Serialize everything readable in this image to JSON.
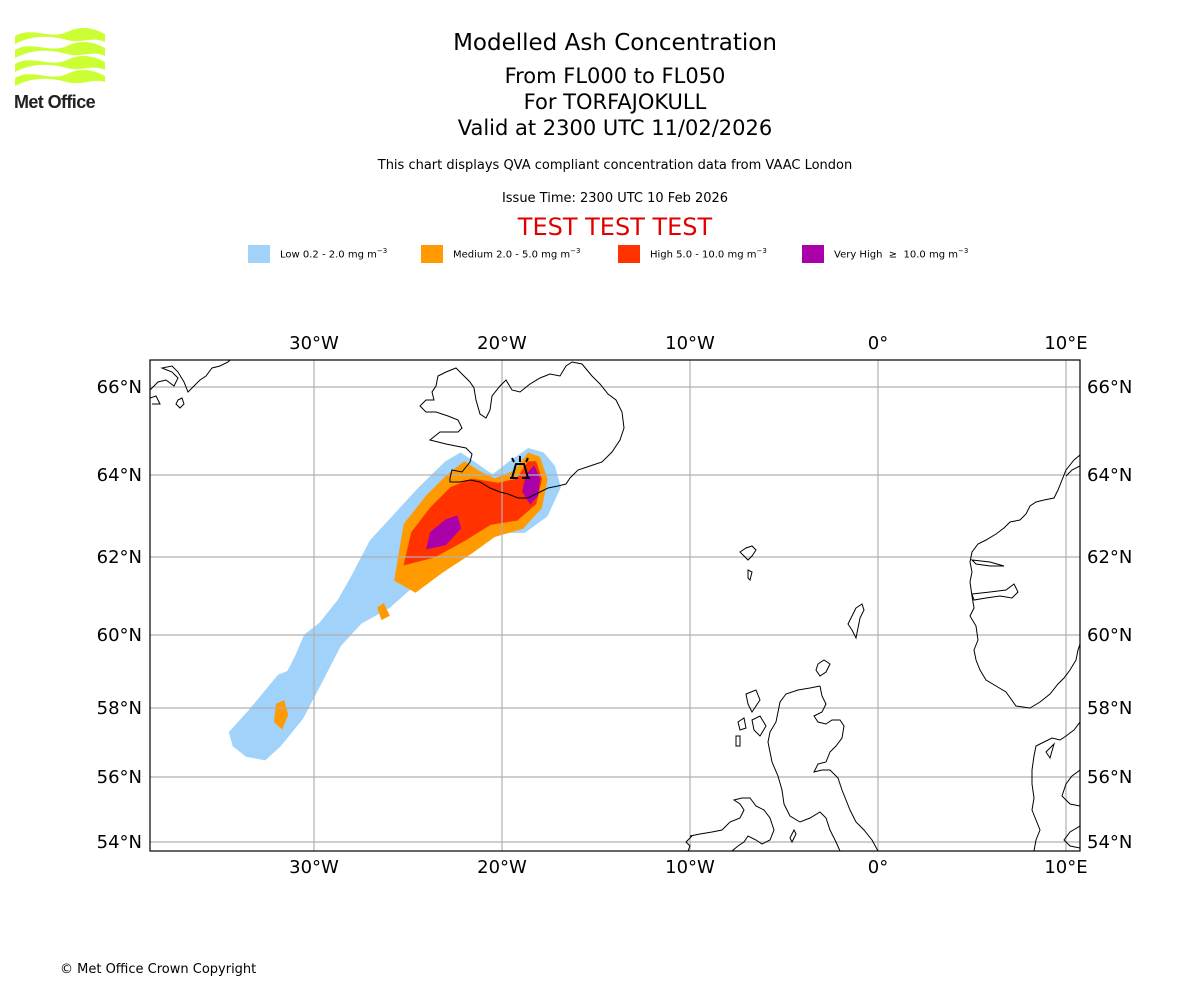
{
  "logo": {
    "text": "Met Office",
    "icon": "met-office-waves-logo",
    "color": "#ccff33"
  },
  "header": {
    "title": "Modelled Ash Concentration",
    "flight_levels": "From FL000 to FL050",
    "volcano": "For TORFAJOKULL",
    "valid_time": "Valid at 2300 UTC 11/02/2026",
    "description": "This chart displays QVA compliant concentration data from VAAC London",
    "issue_time": "Issue Time: 2300 UTC 10 Feb 2026",
    "test_banner": "TEST TEST TEST",
    "test_banner_color": "#e00000"
  },
  "legend": [
    {
      "label": "Low 0.2 - 2.0 mg m",
      "sup": "−3",
      "color": "#a0d2fa"
    },
    {
      "label": "Medium 2.0 - 5.0 mg m",
      "sup": "−3",
      "color": "#ff9a00"
    },
    {
      "label": "High 5.0 - 10.0 mg m",
      "sup": "−3",
      "color": "#ff3200"
    },
    {
      "label": "Very High  ≥  10.0 mg m",
      "sup": "−3",
      "color": "#aa00aa"
    }
  ],
  "footer": {
    "copyright": "© Met Office Crown Copyright"
  },
  "chart_data": {
    "type": "heatmap",
    "title": "Modelled Ash Concentration",
    "subtitle": "From FL000 to FL050, For TORFAJOKULL, Valid at 2300 UTC 11/02/2026",
    "projection": "Plate Carree",
    "extent": {
      "lon": [
        -38.7,
        10.8
      ],
      "lat": [
        53.8,
        66.6
      ]
    },
    "grid": true,
    "x_ticks": [
      {
        "lon": -30,
        "label": "30°W"
      },
      {
        "lon": -20,
        "label": "20°W"
      },
      {
        "lon": -10,
        "label": "10°W"
      },
      {
        "lon": 0,
        "label": "0°"
      },
      {
        "lon": 10,
        "label": "10°E"
      }
    ],
    "y_ticks": [
      {
        "lat": 66,
        "label": "66°N"
      },
      {
        "lat": 64,
        "label": "64°N"
      },
      {
        "lat": 62,
        "label": "62°N"
      },
      {
        "lat": 60,
        "label": "60°N"
      },
      {
        "lat": 58,
        "label": "58°N"
      },
      {
        "lat": 56,
        "label": "56°N"
      },
      {
        "lat": 54,
        "label": "54°N"
      }
    ],
    "volcano_marker": {
      "name": "TORFAJOKULL",
      "lon": -19.1,
      "lat": 63.9
    },
    "ash_levels": [
      {
        "level": "Low",
        "range": "0.2 - 2.0 mg m-3",
        "color": "#a0d2fa",
        "polygons": [
          [
            [
              -34.5,
              57.3
            ],
            [
              -34.3,
              56.9
            ],
            [
              -33.6,
              56.6
            ],
            [
              -32.6,
              56.5
            ],
            [
              -31.8,
              56.9
            ],
            [
              -30.6,
              57.7
            ],
            [
              -29.6,
              58.7
            ],
            [
              -28.6,
              59.7
            ],
            [
              -27.5,
              60.3
            ],
            [
              -26.0,
              60.7
            ],
            [
              -24.6,
              61.3
            ],
            [
              -23.2,
              61.8
            ],
            [
              -21.6,
              62.3
            ],
            [
              -20.3,
              62.6
            ],
            [
              -18.8,
              62.6
            ],
            [
              -17.6,
              63.0
            ],
            [
              -16.9,
              63.7
            ],
            [
              -17.2,
              64.2
            ],
            [
              -17.8,
              64.5
            ],
            [
              -18.6,
              64.6
            ],
            [
              -19.6,
              64.3
            ],
            [
              -20.5,
              64.0
            ],
            [
              -21.5,
              64.3
            ],
            [
              -22.2,
              64.5
            ],
            [
              -23.0,
              64.3
            ],
            [
              -24.4,
              63.7
            ],
            [
              -25.8,
              63.0
            ],
            [
              -27.0,
              62.4
            ],
            [
              -28.0,
              61.5
            ],
            [
              -28.7,
              60.9
            ],
            [
              -29.7,
              60.3
            ],
            [
              -30.5,
              60.0
            ],
            [
              -31.0,
              59.4
            ],
            [
              -31.4,
              59.0
            ],
            [
              -31.9,
              58.9
            ],
            [
              -32.7,
              58.4
            ],
            [
              -33.5,
              57.9
            ]
          ]
        ]
      },
      {
        "level": "Medium",
        "range": "2.0 - 5.0 mg m-3",
        "color": "#ff9a00",
        "polygons": [
          [
            [
              -25.7,
              61.4
            ],
            [
              -24.6,
              61.1
            ],
            [
              -23.2,
              61.6
            ],
            [
              -21.6,
              62.1
            ],
            [
              -20.4,
              62.5
            ],
            [
              -18.9,
              62.7
            ],
            [
              -17.9,
              63.2
            ],
            [
              -17.6,
              63.9
            ],
            [
              -18.0,
              64.4
            ],
            [
              -18.6,
              64.5
            ],
            [
              -19.3,
              64.1
            ],
            [
              -20.4,
              63.9
            ],
            [
              -21.3,
              64.1
            ],
            [
              -22.0,
              64.3
            ],
            [
              -22.9,
              64.0
            ],
            [
              -24.0,
              63.5
            ],
            [
              -25.2,
              62.8
            ],
            [
              -25.5,
              62.0
            ]
          ],
          [
            [
              -31.6,
              58.2
            ],
            [
              -31.4,
              57.8
            ],
            [
              -31.7,
              57.4
            ],
            [
              -32.1,
              57.6
            ],
            [
              -32.0,
              58.1
            ]
          ],
          [
            [
              -26.6,
              60.7
            ],
            [
              -26.3,
              60.8
            ],
            [
              -26.0,
              60.5
            ],
            [
              -26.4,
              60.4
            ]
          ]
        ]
      },
      {
        "level": "High",
        "range": "5.0 - 10.0 mg m-3",
        "color": "#ff3200",
        "polygons": [
          [
            [
              -25.2,
              61.8
            ],
            [
              -23.6,
              62.0
            ],
            [
              -22.0,
              62.4
            ],
            [
              -20.6,
              62.8
            ],
            [
              -19.2,
              62.9
            ],
            [
              -18.2,
              63.3
            ],
            [
              -17.9,
              63.9
            ],
            [
              -18.2,
              64.3
            ],
            [
              -18.6,
              64.3
            ],
            [
              -19.2,
              63.9
            ],
            [
              -20.2,
              63.8
            ],
            [
              -21.6,
              63.9
            ],
            [
              -22.7,
              63.7
            ],
            [
              -23.8,
              63.2
            ],
            [
              -24.8,
              62.6
            ]
          ]
        ]
      },
      {
        "level": "Very High",
        "range": ">= 10.0 mg m-3",
        "color": "#aa00aa",
        "polygons": [
          [
            [
              -18.5,
              63.3
            ],
            [
              -18.1,
              63.5
            ],
            [
              -18.0,
              63.9
            ],
            [
              -18.3,
              64.2
            ],
            [
              -18.7,
              64.0
            ],
            [
              -18.9,
              63.6
            ]
          ],
          [
            [
              -24.0,
              62.2
            ],
            [
              -23.0,
              62.3
            ],
            [
              -22.2,
              62.7
            ],
            [
              -22.4,
              63.0
            ],
            [
              -23.0,
              62.9
            ],
            [
              -23.8,
              62.6
            ]
          ]
        ]
      }
    ]
  }
}
